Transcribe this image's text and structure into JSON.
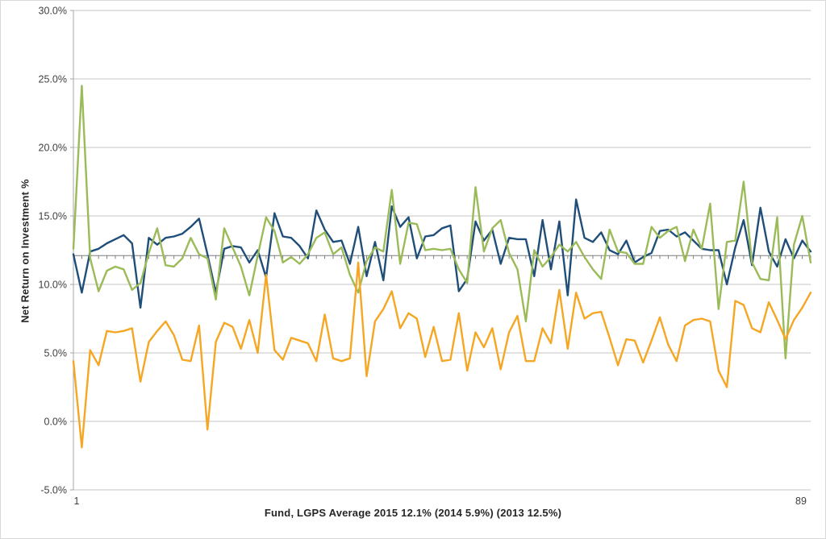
{
  "chart_data": {
    "type": "line",
    "title": "",
    "xlabel": "Fund, LGPS Average 2015 12.1% (2014 5.9%) (2013 12.5%)",
    "ylabel": "Net Return on Investment %",
    "ylim": [
      -5,
      30
    ],
    "x_range": [
      1,
      89
    ],
    "x_tick_labels": [
      "1",
      "89"
    ],
    "yticks": [
      {
        "value": 30,
        "label": "30.0%"
      },
      {
        "value": 25,
        "label": "25.0%"
      },
      {
        "value": 20,
        "label": "20.0%"
      },
      {
        "value": 15,
        "label": "15.0%"
      },
      {
        "value": 10,
        "label": "10.0%"
      },
      {
        "value": 5,
        "label": "5.0%"
      },
      {
        "value": 0,
        "label": "0.0%"
      },
      {
        "value": -5,
        "label": "-5.0%"
      }
    ],
    "grid": "horizontal",
    "legend": "none",
    "category_axis_cross_value": 12.1,
    "series": [
      {
        "name": "navy",
        "color": "#1F4E79",
        "values": [
          12.2,
          9.4,
          12.4,
          12.6,
          13.0,
          13.3,
          13.6,
          13.0,
          8.3,
          13.4,
          12.9,
          13.4,
          13.5,
          13.7,
          14.2,
          14.8,
          12.2,
          9.4,
          12.6,
          12.8,
          12.7,
          11.6,
          12.5,
          10.5,
          15.2,
          13.5,
          13.4,
          12.8,
          11.9,
          15.4,
          14.0,
          13.1,
          13.2,
          11.5,
          14.2,
          10.6,
          13.1,
          10.3,
          15.7,
          14.2,
          14.9,
          11.9,
          13.5,
          13.6,
          14.1,
          14.3,
          9.5,
          10.4,
          14.6,
          13.2,
          14.0,
          11.5,
          13.4,
          13.3,
          13.3,
          10.6,
          14.7,
          11.1,
          14.6,
          9.2,
          16.2,
          13.4,
          13.1,
          13.8,
          12.5,
          12.2,
          13.2,
          11.6,
          12.0,
          12.3,
          13.9,
          14.0,
          13.5,
          13.8,
          13.2,
          12.6,
          12.5,
          12.5,
          10.0,
          12.7,
          14.7,
          11.4,
          15.6,
          12.4,
          11.3,
          13.3,
          11.9,
          13.2,
          12.4
        ]
      },
      {
        "name": "green",
        "color": "#9BBB59",
        "values": [
          12.6,
          24.5,
          11.9,
          9.5,
          11.0,
          11.3,
          11.1,
          9.6,
          10.1,
          12.3,
          14.1,
          11.4,
          11.3,
          11.9,
          13.4,
          12.2,
          11.9,
          8.9,
          14.1,
          12.7,
          11.3,
          9.2,
          12.1,
          14.9,
          13.9,
          11.6,
          12.0,
          11.5,
          12.2,
          13.4,
          13.8,
          12.2,
          12.7,
          10.7,
          9.4,
          11.7,
          12.7,
          12.4,
          16.9,
          11.5,
          14.5,
          14.4,
          12.5,
          12.6,
          12.5,
          12.6,
          11.1,
          10.1,
          17.1,
          12.4,
          14.1,
          14.7,
          12.3,
          11.1,
          7.3,
          12.5,
          11.3,
          12.0,
          12.9,
          12.4,
          13.1,
          12.0,
          11.1,
          10.4,
          14.0,
          12.4,
          12.3,
          11.5,
          11.5,
          14.2,
          13.4,
          13.9,
          14.2,
          11.7,
          14.0,
          12.6,
          15.9,
          8.2,
          13.1,
          13.2,
          17.5,
          11.6,
          10.4,
          10.3,
          14.9,
          4.6,
          12.9,
          15.0,
          11.6
        ]
      },
      {
        "name": "orange",
        "color": "#F5A623",
        "values": [
          4.4,
          -1.9,
          5.2,
          4.1,
          6.6,
          6.5,
          6.6,
          6.8,
          2.9,
          5.8,
          6.6,
          7.3,
          6.3,
          4.5,
          4.4,
          7.0,
          -0.6,
          5.8,
          7.2,
          6.9,
          5.3,
          7.4,
          5.0,
          10.7,
          5.2,
          4.5,
          6.1,
          5.9,
          5.7,
          4.4,
          7.8,
          4.6,
          4.4,
          4.6,
          11.6,
          3.3,
          7.3,
          8.2,
          9.5,
          6.8,
          7.9,
          7.5,
          4.7,
          6.9,
          4.4,
          4.5,
          7.9,
          3.7,
          6.5,
          5.4,
          6.8,
          3.8,
          6.5,
          7.7,
          4.4,
          4.4,
          6.8,
          5.7,
          9.6,
          5.3,
          9.4,
          7.5,
          7.9,
          8.0,
          6.1,
          4.1,
          6.0,
          5.9,
          4.3,
          5.9,
          7.6,
          5.6,
          4.4,
          7.0,
          7.4,
          7.5,
          7.3,
          3.7,
          2.5,
          8.8,
          8.5,
          6.8,
          6.5,
          8.7,
          7.4,
          6.0,
          7.4,
          8.3,
          9.4
        ]
      }
    ]
  },
  "colors": {
    "background": "#FFFFFF",
    "border": "#D9D9D9",
    "grid": "#C6C6C6",
    "axis": "#A6A6A6",
    "category_axis": "#7F7F7F",
    "tick_text": "#404040"
  }
}
